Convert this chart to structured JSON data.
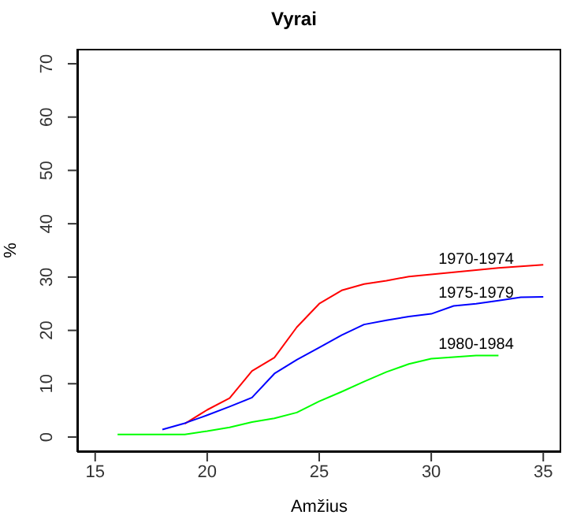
{
  "chart_data": {
    "type": "line",
    "title": "Vyrai",
    "xlabel": "Amžius",
    "ylabel": "%",
    "xlim": [
      14.2,
      35.8
    ],
    "ylim": [
      -2.8,
      72.8
    ],
    "xticks": [
      15,
      20,
      25,
      30,
      35
    ],
    "yticks": [
      0,
      10,
      20,
      30,
      40,
      50,
      60,
      70
    ],
    "marker": "none",
    "line_style": "solid",
    "series": [
      {
        "name": "1970-1974",
        "color": "#ff0000",
        "x": [
          19,
          20,
          21,
          22,
          23,
          24,
          25,
          26,
          27,
          28,
          29,
          30,
          31,
          32,
          33,
          34,
          35
        ],
        "values": [
          2.5,
          5.1,
          7.3,
          12.4,
          14.9,
          20.6,
          25,
          27.5,
          28.7,
          29.3,
          30.1,
          30.5,
          30.9,
          31.3,
          31.7,
          32,
          32.3
        ]
      },
      {
        "name": "1975-1979",
        "color": "#0000ff",
        "x": [
          18,
          19,
          20,
          21,
          22,
          23,
          24,
          25,
          26,
          27,
          28,
          29,
          30,
          31,
          32,
          33,
          34,
          35
        ],
        "values": [
          1.4,
          2.6,
          4.1,
          5.7,
          7.4,
          11.9,
          14.5,
          16.8,
          19.1,
          21.1,
          21.9,
          22.6,
          23.1,
          24.6,
          25,
          25.6,
          26.2,
          26.3
        ]
      },
      {
        "name": "1980-1984",
        "color": "#00ff00",
        "x": [
          16,
          17,
          18,
          19,
          20,
          21,
          22,
          23,
          24,
          25,
          26,
          27,
          28,
          29,
          30,
          31,
          32,
          33
        ],
        "values": [
          0.5,
          0.5,
          0.5,
          0.5,
          1.1,
          1.8,
          2.8,
          3.5,
          4.6,
          6.7,
          8.5,
          10.4,
          12.2,
          13.7,
          14.7,
          15,
          15.3,
          15.3
        ]
      }
    ]
  }
}
